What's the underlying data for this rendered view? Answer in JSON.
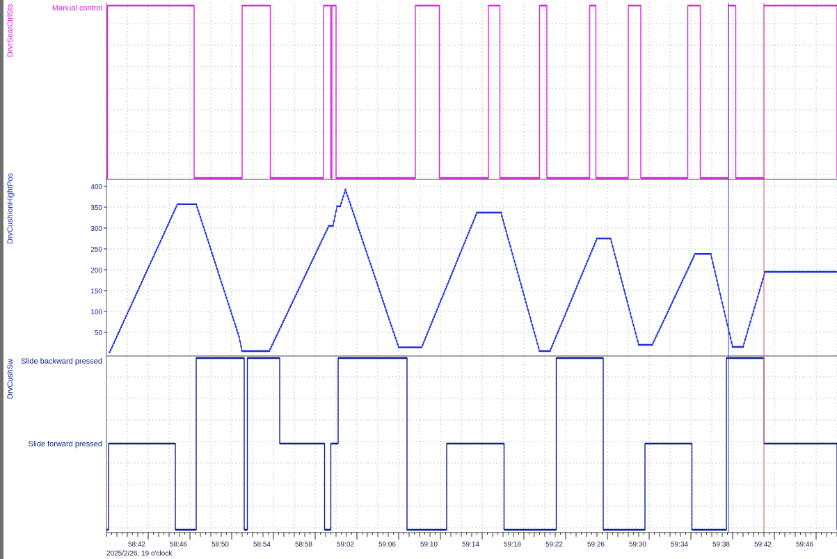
{
  "chart_data": [
    {
      "type": "line",
      "signal": "DrvrSeatCtrlSts",
      "color": "#e01ee0",
      "state_labels": [
        "Manual control"
      ],
      "xlim": [
        "58:38",
        "59:48"
      ],
      "step": true,
      "x": [
        "58:38.0",
        "58:38.1",
        "58:45.4",
        "58:46.4",
        "58:51.0",
        "58:53.7",
        "58:58.8",
        "58:59.5",
        "58:59.6",
        "59:00.0",
        "59:07.6",
        "59:09.9",
        "59:14.6",
        "59:15.7",
        "59:19.5",
        "59:20.2",
        "59:24.3",
        "59:24.9",
        "59:28.0",
        "59:29.2",
        "59:33.7",
        "59:34.9",
        "59:37.6",
        "59:38.3",
        "59:41.0",
        "59:48.0"
      ],
      "y": [
        0,
        1,
        1,
        0,
        1,
        0,
        1,
        0,
        1,
        0,
        1,
        0,
        1,
        0,
        1,
        0,
        1,
        0,
        1,
        0,
        1,
        0,
        1,
        0,
        1,
        0
      ]
    },
    {
      "type": "line",
      "signal": "DrvCushionHightPos",
      "color": "#1f2ee0",
      "ylim": [
        0,
        410
      ],
      "yticks": [
        50,
        100,
        150,
        200,
        250,
        300,
        350,
        400
      ],
      "xlim": [
        "58:38",
        "59:48"
      ],
      "x": [
        "58:38.3",
        "58:44.8",
        "58:46.6",
        "58:50.7",
        "58:51.0",
        "58:53.6",
        "58:59.3",
        "58:59.7",
        "59:00.1",
        "59:00.4",
        "59:00.9",
        "59:06.0",
        "59:08.2",
        "59:13.5",
        "59:15.8",
        "59:19.5",
        "59:20.5",
        "59:25.0",
        "59:26.3",
        "59:29.0",
        "59:30.3",
        "59:34.4",
        "59:35.9",
        "59:38.0",
        "59:39.0",
        "59:41.1",
        "59:48.0"
      ],
      "y": [
        2,
        357,
        357,
        40,
        5,
        5,
        305,
        305,
        352,
        352,
        392,
        14,
        14,
        337,
        337,
        5,
        5,
        275,
        275,
        20,
        20,
        238,
        238,
        15,
        15,
        195,
        195
      ]
    },
    {
      "type": "line",
      "signal": "DrvCushSw",
      "color": "#0b1f8f",
      "state_labels": [
        "Slide backward pressed",
        "Slide forward pressed"
      ],
      "xlim": [
        "58:38",
        "59:48"
      ],
      "step": true,
      "x": [
        "58:38.0",
        "58:38.2",
        "58:44.6",
        "58:46.6",
        "58:51.2",
        "58:51.5",
        "58:54.6",
        "58:58.9",
        "58:59.5",
        "59:00.2",
        "59:06.8",
        "59:10.6",
        "59:16.1",
        "59:21.1",
        "59:25.6",
        "59:29.6",
        "59:34.1",
        "59:37.4",
        "59:41.0",
        "59:48.0"
      ],
      "y": [
        0,
        1,
        0,
        2,
        0,
        2,
        1,
        0,
        1,
        2,
        0,
        1,
        0,
        2,
        0,
        1,
        0,
        2,
        1,
        0
      ]
    }
  ],
  "x_axis": {
    "ticks": [
      "58:42",
      "58:46",
      "58:50",
      "58:54",
      "58:58",
      "59:02",
      "59:06",
      "59:10",
      "59:14",
      "59:18",
      "59:22",
      "59:26",
      "59:30",
      "59:34",
      "59:38",
      "59:42",
      "59:46"
    ],
    "date_label": "2025/2/26, 19 o'clock"
  },
  "cursors": [
    {
      "time": "59:37.6",
      "color": "#2a3ad0"
    },
    {
      "time": "59:41.0",
      "color": "#e05050"
    }
  ]
}
